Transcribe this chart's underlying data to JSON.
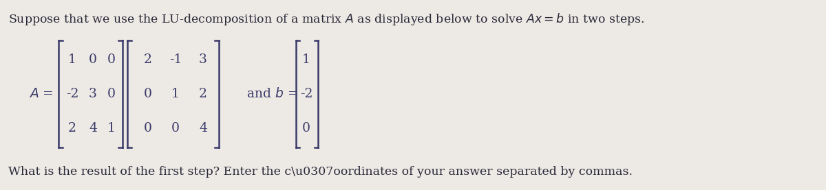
{
  "bg_color": "#ede9e4",
  "text_color": "#2a2a3a",
  "matrix_color": "#3a3a6a",
  "L_matrix": [
    [
      1,
      0,
      0
    ],
    [
      -2,
      3,
      0
    ],
    [
      2,
      4,
      1
    ]
  ],
  "U_matrix": [
    [
      2,
      -1,
      3
    ],
    [
      0,
      1,
      2
    ],
    [
      0,
      0,
      4
    ]
  ],
  "b_vector": [
    1,
    -2,
    0
  ],
  "title": "Suppose that we use the LU-decomposition of a matrix $A$ as displayed below to solve $Ax = b$ in two steps.",
  "bottom": "What is the result of the first step? Enter the c\\u0307oordinates of your answer separated by commas.",
  "font_size_title": 12.5,
  "font_size_matrix": 13.5,
  "font_size_label": 13.5,
  "font_size_bottom": 12.5
}
